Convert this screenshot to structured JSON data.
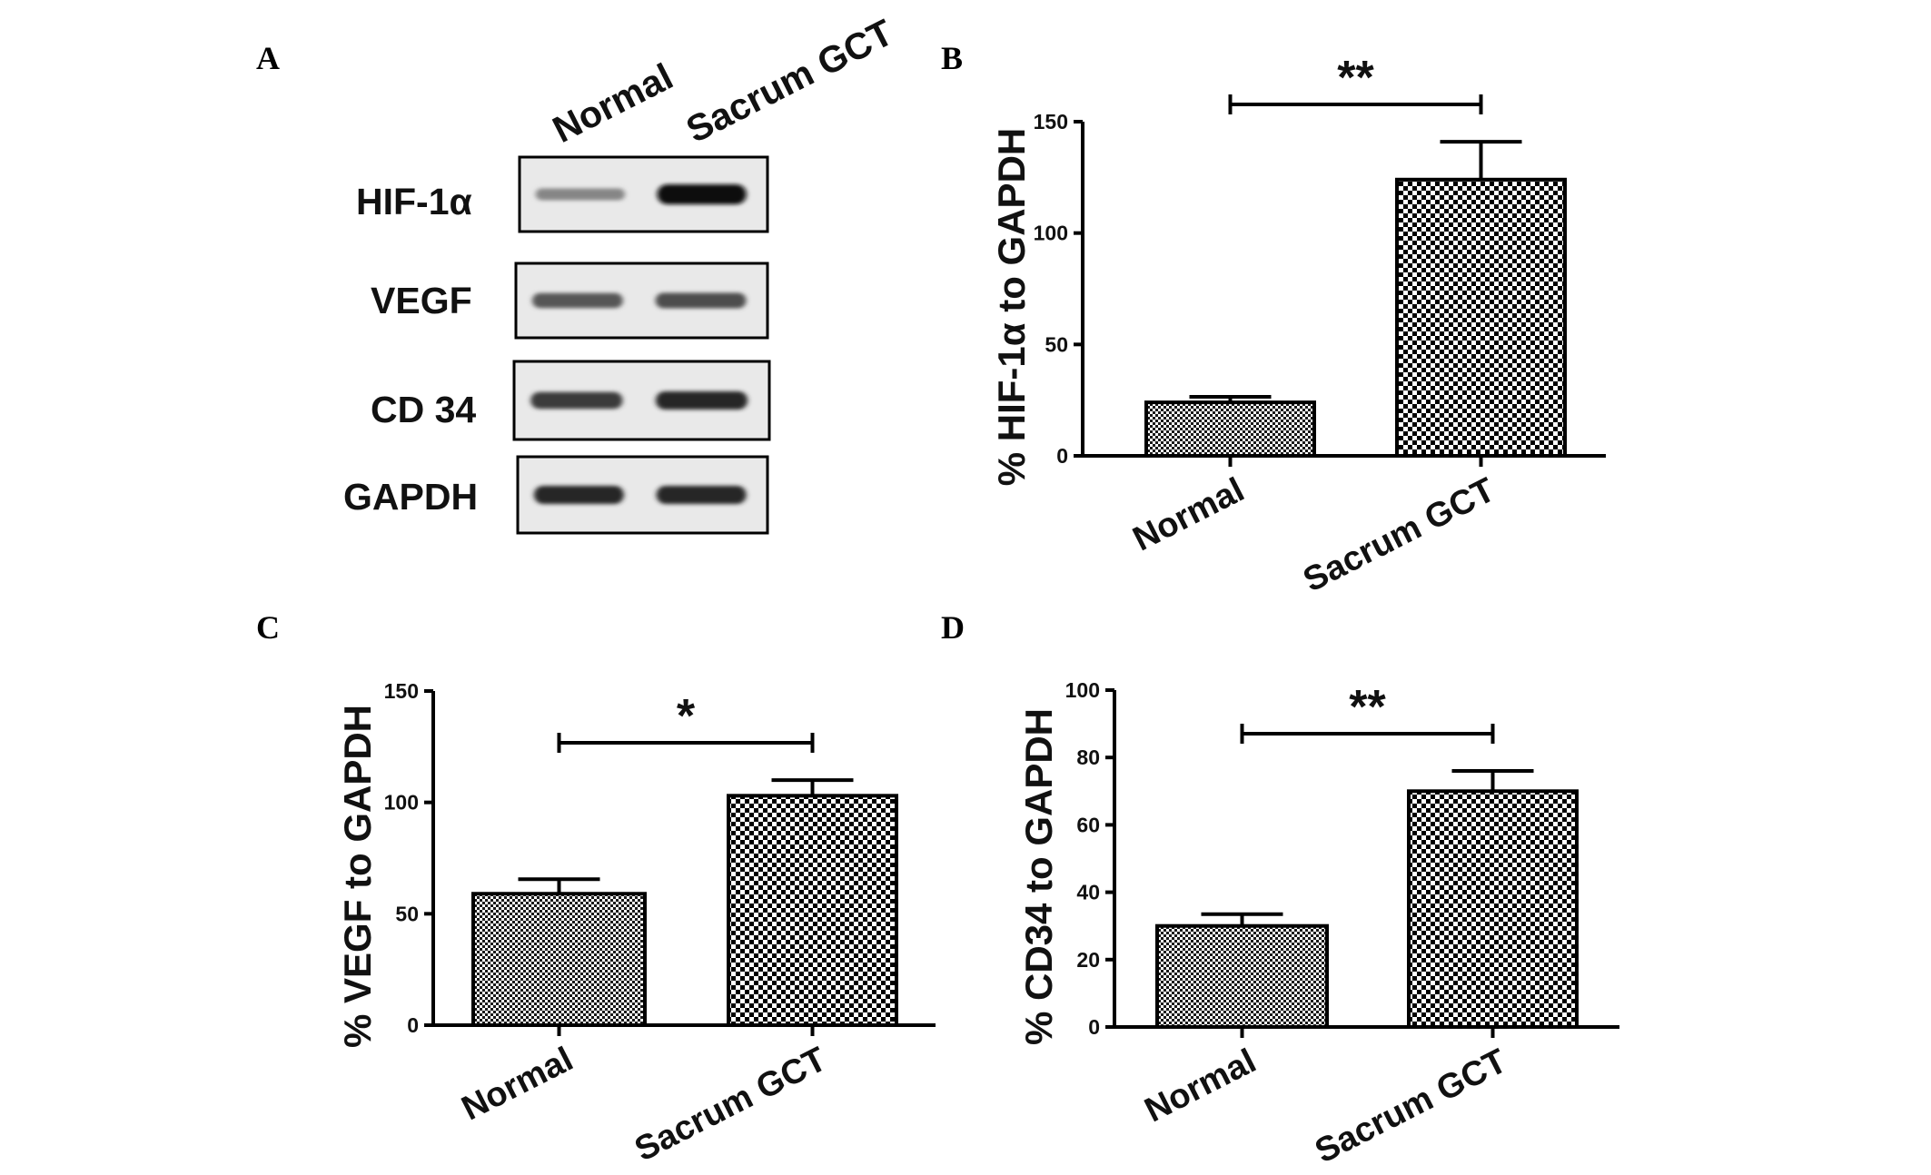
{
  "panel_letters": [
    "A",
    "B",
    "C",
    "D"
  ],
  "blot": {
    "lanes": [
      "Normal",
      "Sacrum GCT"
    ],
    "rows": [
      {
        "label": "HIF-1α",
        "intensities": [
          0.35,
          1.0
        ]
      },
      {
        "label": "VEGF",
        "intensities": [
          0.6,
          0.65
        ]
      },
      {
        "label": "CD 34",
        "intensities": [
          0.75,
          0.85
        ]
      },
      {
        "label": "GAPDH",
        "intensities": [
          0.85,
          0.85
        ]
      }
    ]
  },
  "chart_data": [
    {
      "type": "bar",
      "panel": "B",
      "categories": [
        "Normal",
        "Sacrum GCT"
      ],
      "values": [
        24,
        124
      ],
      "errors": [
        2.5,
        17
      ],
      "ylabel": "% HIF-1α to GAPDH",
      "ylim": [
        0,
        150
      ],
      "yticks": [
        "0",
        "50",
        "100",
        "150"
      ],
      "significance": "**",
      "grid": false
    },
    {
      "type": "bar",
      "panel": "C",
      "categories": [
        "Normal",
        "Sacrum GCT"
      ],
      "values": [
        59,
        103
      ],
      "errors": [
        6.5,
        7
      ],
      "ylabel": "% VEGF to GAPDH",
      "ylim": [
        0,
        150
      ],
      "yticks": [
        "0",
        "50",
        "100",
        "150"
      ],
      "significance": "*",
      "grid": false
    },
    {
      "type": "bar",
      "panel": "D",
      "categories": [
        "Normal",
        "Sacrum GCT"
      ],
      "values": [
        30,
        70
      ],
      "errors": [
        3.5,
        6
      ],
      "ylabel": "% CD34 to GAPDH",
      "ylim": [
        0,
        100
      ],
      "yticks": [
        "0",
        "20",
        "40",
        "60",
        "80",
        "100"
      ],
      "significance": "**",
      "grid": false
    }
  ]
}
